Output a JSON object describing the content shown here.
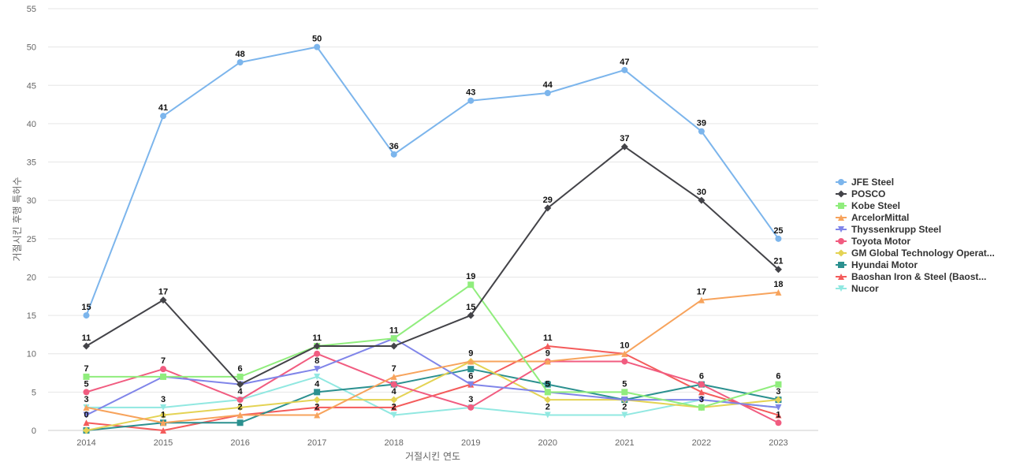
{
  "chart_data": {
    "type": "line",
    "xlabel": "거절시킨 연도",
    "ylabel": "거절시킨 후행 특허수",
    "ylim": [
      0,
      55
    ],
    "y_ticks": [
      0,
      5,
      10,
      15,
      20,
      25,
      30,
      35,
      40,
      45,
      50,
      55
    ],
    "grid": true,
    "legend_position": "right",
    "x": [
      "2014",
      "2015",
      "2016",
      "2017",
      "2018",
      "2019",
      "2020",
      "2021",
      "2022",
      "2023"
    ],
    "series": [
      {
        "name": "JFE Steel",
        "color": "#7cb5ec",
        "marker": "circle",
        "values": [
          15,
          41,
          48,
          50,
          36,
          43,
          44,
          47,
          39,
          25
        ],
        "labels": true
      },
      {
        "name": "POSCO",
        "color": "#434348",
        "marker": "diamond",
        "values": [
          11,
          17,
          6,
          11,
          11,
          15,
          29,
          37,
          30,
          21
        ],
        "labels": true
      },
      {
        "name": "Kobe Steel",
        "color": "#90ed7d",
        "marker": "square",
        "values": [
          7,
          7,
          7,
          11,
          12,
          19,
          5,
          5,
          3,
          6
        ],
        "labels": true
      },
      {
        "name": "ArcelorMittal",
        "color": "#f7a35c",
        "marker": "triangle",
        "values": [
          3,
          1,
          2,
          2,
          7,
          9,
          9,
          10,
          17,
          18
        ],
        "labels": true
      },
      {
        "name": "Thyssenkrupp Steel",
        "color": "#8085e9",
        "marker": "triangle-down",
        "values": [
          2,
          7,
          6,
          8,
          12,
          6,
          5,
          4,
          4,
          3
        ],
        "labels": false
      },
      {
        "name": "Toyota Motor",
        "color": "#f15c80",
        "marker": "circle",
        "values": [
          5,
          8,
          4,
          10,
          6,
          3,
          9,
          9,
          6,
          1
        ],
        "labels": false
      },
      {
        "name": "GM Global Technology Operat...",
        "color": "#e4d354",
        "marker": "diamond",
        "values": [
          0,
          2,
          3,
          4,
          4,
          9,
          4,
          4,
          3,
          4
        ],
        "labels": false
      },
      {
        "name": "Hyundai Motor",
        "color": "#2b908f",
        "marker": "square",
        "values": [
          0,
          1,
          1,
          5,
          6,
          8,
          6,
          4,
          6,
          4
        ],
        "labels": false
      },
      {
        "name": "Baoshan Iron & Steel (Baost...",
        "color": "#f45b5b",
        "marker": "triangle",
        "values": [
          1,
          0,
          2,
          3,
          3,
          6,
          11,
          10,
          5,
          2
        ],
        "labels": false
      },
      {
        "name": "Nucor",
        "color": "#91e8e1",
        "marker": "triangle-down",
        "values": [
          3,
          3,
          4,
          7,
          2,
          3,
          2,
          2,
          4,
          3
        ],
        "labels": false
      }
    ],
    "data_labels": [
      {
        "x": "2014",
        "y": 15,
        "text": "15"
      },
      {
        "x": "2014",
        "y": 11,
        "text": "11"
      },
      {
        "x": "2014",
        "y": 7,
        "text": "7"
      },
      {
        "x": "2014",
        "y": 5,
        "text": "5"
      },
      {
        "x": "2014",
        "y": 3,
        "text": "3"
      },
      {
        "x": "2014",
        "y": 1,
        "text": "0"
      },
      {
        "x": "2015",
        "y": 41,
        "text": "41"
      },
      {
        "x": "2015",
        "y": 17,
        "text": "17"
      },
      {
        "x": "2015",
        "y": 8,
        "text": "7"
      },
      {
        "x": "2015",
        "y": 3,
        "text": "3"
      },
      {
        "x": "2015",
        "y": 1,
        "text": "1"
      },
      {
        "x": "2016",
        "y": 48,
        "text": "48"
      },
      {
        "x": "2016",
        "y": 7,
        "text": "6"
      },
      {
        "x": "2016",
        "y": 4,
        "text": "4"
      },
      {
        "x": "2016",
        "y": 2,
        "text": "2"
      },
      {
        "x": "2017",
        "y": 50,
        "text": "50"
      },
      {
        "x": "2017",
        "y": 11,
        "text": "11"
      },
      {
        "x": "2017",
        "y": 8,
        "text": "8"
      },
      {
        "x": "2017",
        "y": 5,
        "text": "4"
      },
      {
        "x": "2017",
        "y": 2,
        "text": "2"
      },
      {
        "x": "2018",
        "y": 36,
        "text": "36"
      },
      {
        "x": "2018",
        "y": 12,
        "text": "11"
      },
      {
        "x": "2018",
        "y": 7,
        "text": "7"
      },
      {
        "x": "2018",
        "y": 4,
        "text": "4"
      },
      {
        "x": "2018",
        "y": 2,
        "text": "2"
      },
      {
        "x": "2019",
        "y": 43,
        "text": "43"
      },
      {
        "x": "2019",
        "y": 19,
        "text": "19"
      },
      {
        "x": "2019",
        "y": 15,
        "text": "15"
      },
      {
        "x": "2019",
        "y": 9,
        "text": "9"
      },
      {
        "x": "2019",
        "y": 6,
        "text": "6"
      },
      {
        "x": "2019",
        "y": 3,
        "text": "3"
      },
      {
        "x": "2020",
        "y": 44,
        "text": "44"
      },
      {
        "x": "2020",
        "y": 29,
        "text": "29"
      },
      {
        "x": "2020",
        "y": 11,
        "text": "11"
      },
      {
        "x": "2020",
        "y": 9,
        "text": "9"
      },
      {
        "x": "2020",
        "y": 5,
        "text": "5"
      },
      {
        "x": "2020",
        "y": 2,
        "text": "2"
      },
      {
        "x": "2021",
        "y": 47,
        "text": "47"
      },
      {
        "x": "2021",
        "y": 37,
        "text": "37"
      },
      {
        "x": "2021",
        "y": 10,
        "text": "10"
      },
      {
        "x": "2021",
        "y": 5,
        "text": "5"
      },
      {
        "x": "2021",
        "y": 2,
        "text": "2"
      },
      {
        "x": "2022",
        "y": 39,
        "text": "39"
      },
      {
        "x": "2022",
        "y": 30,
        "text": "30"
      },
      {
        "x": "2022",
        "y": 17,
        "text": "17"
      },
      {
        "x": "2022",
        "y": 6,
        "text": "6"
      },
      {
        "x": "2022",
        "y": 3,
        "text": "3"
      },
      {
        "x": "2023",
        "y": 25,
        "text": "25"
      },
      {
        "x": "2023",
        "y": 21,
        "text": "21"
      },
      {
        "x": "2023",
        "y": 18,
        "text": "18"
      },
      {
        "x": "2023",
        "y": 6,
        "text": "6"
      },
      {
        "x": "2023",
        "y": 4,
        "text": "3"
      },
      {
        "x": "2023",
        "y": 1,
        "text": "1"
      }
    ]
  }
}
